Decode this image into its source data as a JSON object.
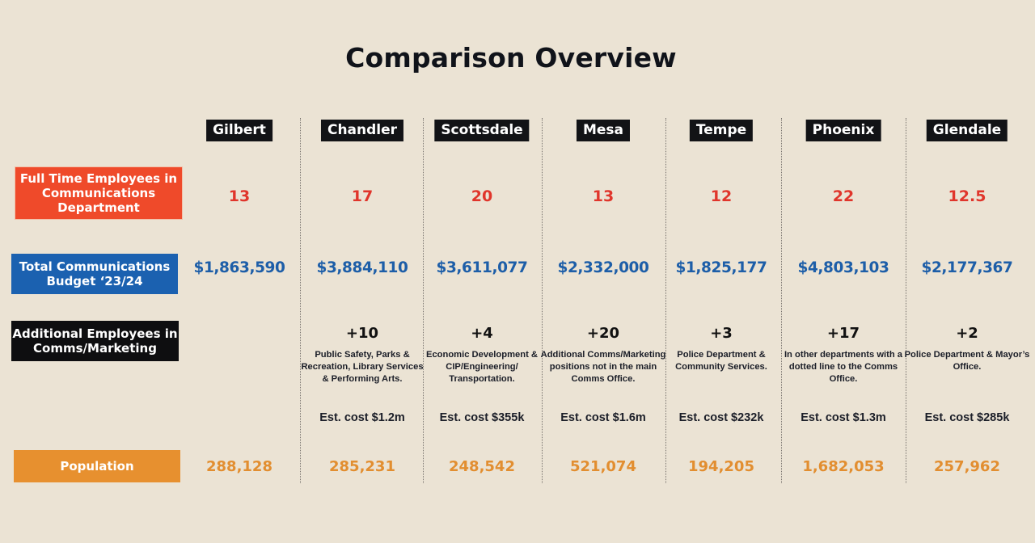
{
  "title": "Comparison Overview",
  "row_labels": {
    "fte": "Full Time Employees in Communications Department",
    "budget": "Total Communications Budget ‘23/24",
    "additional": "Additional Employees in Comms/Marketing",
    "population": "Population"
  },
  "colors": {
    "fte_label_bg": "#ef4a2a",
    "budget_label_bg": "#1b61b0",
    "additional_label_bg": "#0e0e10",
    "population_label_bg": "#e7902f",
    "fte_value": "#e0352b",
    "budget_value": "#1d5ea8",
    "population_value": "#e28e30",
    "background": "#ebe3d4"
  },
  "cities": [
    {
      "name": "Gilbert",
      "fte": "13",
      "budget": "$1,863,590",
      "additional": "",
      "additional_desc": "",
      "cost": "",
      "population": "288,128"
    },
    {
      "name": "Chandler",
      "fte": "17",
      "budget": "$3,884,110",
      "additional": "+10",
      "additional_desc": "Public Safety, Parks & Recreation, Library Services & Performing Arts.",
      "cost": "Est. cost $1.2m",
      "population": "285,231"
    },
    {
      "name": "Scottsdale",
      "fte": "20",
      "budget": "$3,611,077",
      "additional": "+4",
      "additional_desc": "Economic Development & CIP/Engineering/ Transportation.",
      "cost": "Est. cost $355k",
      "population": "248,542"
    },
    {
      "name": "Mesa",
      "fte": "13",
      "budget": "$2,332,000",
      "additional": "+20",
      "additional_desc": "Additional Comms/Marketing positions not in the main Comms Office.",
      "cost": "Est. cost $1.6m",
      "population": "521,074"
    },
    {
      "name": "Tempe",
      "fte": "12",
      "budget": "$1,825,177",
      "additional": "+3",
      "additional_desc": "Police Department & Community Services.",
      "cost": "Est. cost $232k",
      "population": "194,205"
    },
    {
      "name": "Phoenix",
      "fte": "22",
      "budget": "$4,803,103",
      "additional": "+17",
      "additional_desc": "In other departments with a dotted line to the Comms Office.",
      "cost": "Est. cost $1.3m",
      "population": "1,682,053"
    },
    {
      "name": "Glendale",
      "fte": "12.5",
      "budget": "$2,177,367",
      "additional": "+2",
      "additional_desc": "Police Department & Mayor’s Office.",
      "cost": "Est. cost $285k",
      "population": "257,962"
    }
  ]
}
